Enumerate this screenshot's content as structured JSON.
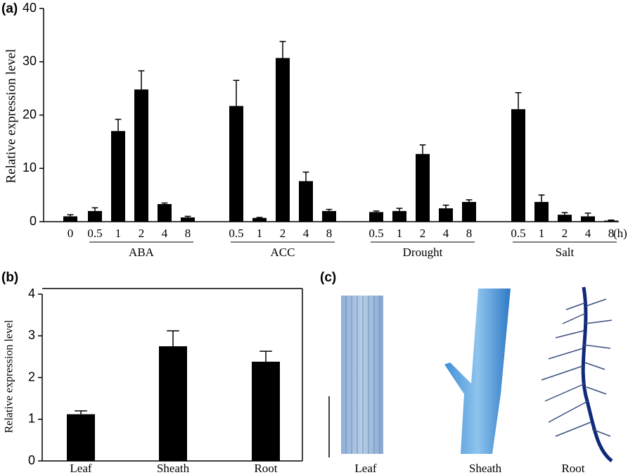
{
  "chart_data": [
    {
      "type": "bar",
      "panel_label": "(a)",
      "y_label": "Relative expression level",
      "ylim": [
        0,
        40
      ],
      "yticks": [
        0,
        10,
        20,
        30,
        40
      ],
      "color": "#000000",
      "x_unit": "(h)",
      "control": {
        "category": "0",
        "value": 1.0,
        "error": 0.3
      },
      "groups": [
        {
          "label": "ABA",
          "categories": [
            "0.5",
            "1",
            "2",
            "4",
            "8"
          ],
          "values": [
            2.0,
            17.0,
            24.8,
            3.3,
            0.8
          ],
          "errors": [
            0.6,
            2.2,
            3.5,
            0.2,
            0.2
          ]
        },
        {
          "label": "ACC",
          "categories": [
            "0.5",
            "1",
            "2",
            "4",
            "8"
          ],
          "values": [
            21.7,
            0.7,
            30.7,
            7.6,
            2.0
          ],
          "errors": [
            4.8,
            0.1,
            3.1,
            1.7,
            0.3
          ]
        },
        {
          "label": "Drought",
          "categories": [
            "0.5",
            "1",
            "2",
            "4",
            "8"
          ],
          "values": [
            1.8,
            2.0,
            12.7,
            2.5,
            3.7
          ],
          "errors": [
            0.2,
            0.5,
            1.7,
            0.6,
            0.4
          ]
        },
        {
          "label": "Salt",
          "categories": [
            "0.5",
            "1",
            "2",
            "4",
            "8"
          ],
          "values": [
            21.1,
            3.7,
            1.3,
            1.0,
            0.2
          ],
          "errors": [
            3.1,
            1.3,
            0.4,
            0.6,
            0.1
          ]
        }
      ]
    },
    {
      "type": "bar",
      "panel_label": "(b)",
      "y_label": "Relative expression level",
      "ylim": [
        0,
        4
      ],
      "yticks": [
        0,
        1,
        2,
        3,
        4
      ],
      "color": "#000000",
      "frame": true,
      "categories": [
        "Leaf",
        "Sheath",
        "Root"
      ],
      "values": [
        1.12,
        2.75,
        2.38
      ],
      "errors": [
        0.08,
        0.37,
        0.25
      ]
    }
  ],
  "panel_c": {
    "label": "(c)",
    "images": [
      "Leaf",
      "Sheath",
      "Root"
    ]
  }
}
